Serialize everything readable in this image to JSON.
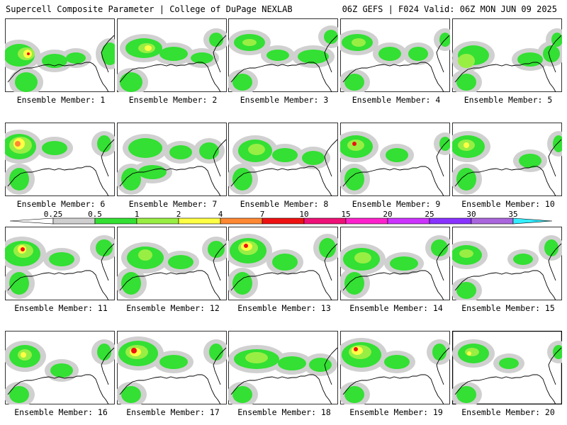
{
  "header": {
    "title": "Supercell Composite Parameter | College of DuPage NEXLAB",
    "run_info": "06Z GEFS | F024 Valid: 06Z MON JUN 09 2025"
  },
  "colorbar": {
    "ticks": [
      "0.25",
      "0.5",
      "1",
      "2",
      "4",
      "7",
      "10",
      "15",
      "20",
      "25",
      "30",
      "35"
    ],
    "colors": [
      "#ffffff",
      "#cfcfcf",
      "#33e033",
      "#99ee44",
      "#ffff44",
      "#ff8833",
      "#ee1111",
      "#ee1177",
      "#ff22cc",
      "#cc33ff",
      "#8833ff",
      "#aa66dd",
      "#33eeff"
    ]
  },
  "map_colors": {
    "gray": "#d0d0d0",
    "green": "#33e033",
    "light_green": "#99ee44",
    "yellow": "#ffff44",
    "orange": "#ff8833",
    "red": "#ee1111",
    "coast": "#000000"
  },
  "members": [
    {
      "label": "Ensemble Member: 1"
    },
    {
      "label": "Ensemble Member: 2"
    },
    {
      "label": "Ensemble Member: 3"
    },
    {
      "label": "Ensemble Member: 4"
    },
    {
      "label": "Ensemble Member: 5"
    },
    {
      "label": "Ensemble Member: 6"
    },
    {
      "label": "Ensemble Member: 7"
    },
    {
      "label": "Ensemble Member: 8"
    },
    {
      "label": "Ensemble Member: 9"
    },
    {
      "label": "Ensemble Member: 10"
    },
    {
      "label": "Ensemble Member: 11"
    },
    {
      "label": "Ensemble Member: 12"
    },
    {
      "label": "Ensemble Member: 13"
    },
    {
      "label": "Ensemble Member: 14"
    },
    {
      "label": "Ensemble Member: 15"
    },
    {
      "label": "Ensemble Member: 16"
    },
    {
      "label": "Ensemble Member: 17"
    },
    {
      "label": "Ensemble Member: 18"
    },
    {
      "label": "Ensemble Member: 19"
    },
    {
      "label": "Ensemble Member: 20",
      "selected": true
    }
  ]
}
